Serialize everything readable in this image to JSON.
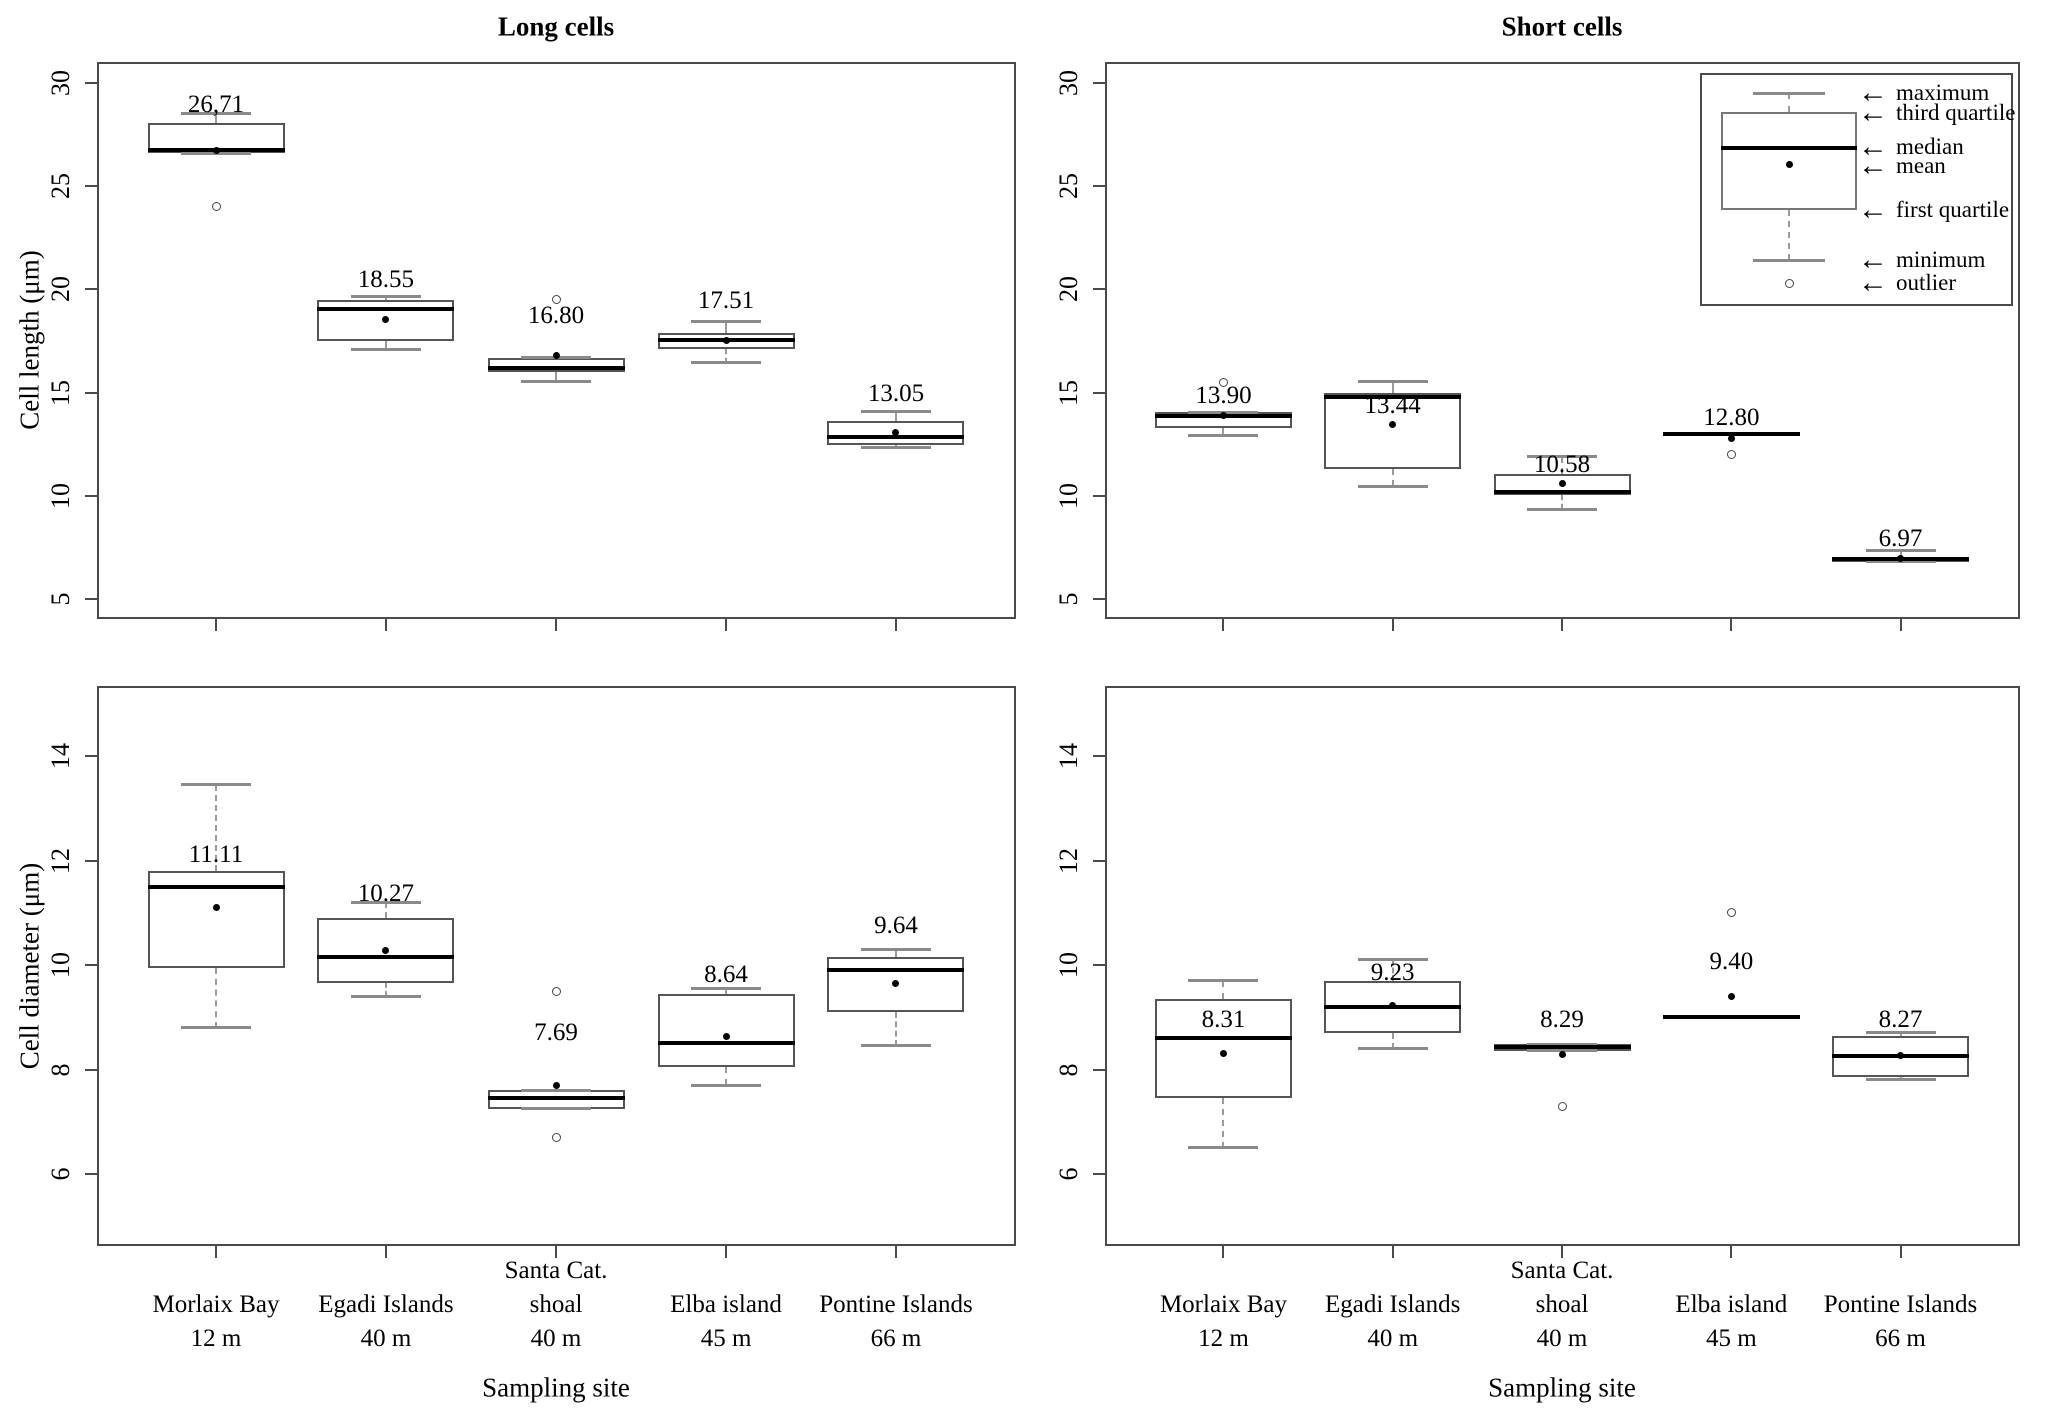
{
  "figure_titles": {
    "left": "Long cells",
    "right": "Short cells"
  },
  "axis_labels": {
    "x": "Sampling site",
    "y_top": "Cell length (μm)",
    "y_bottom": "Cell diameter (μm)"
  },
  "sites": [
    {
      "lines": [
        "Morlaix Bay",
        "12 m"
      ]
    },
    {
      "lines": [
        "Egadi Islands",
        "40 m"
      ]
    },
    {
      "lines": [
        "Santa Cat.",
        "shoal",
        "40 m"
      ]
    },
    {
      "lines": [
        "Elba island",
        "45 m"
      ]
    },
    {
      "lines": [
        "Pontine Islands",
        "66 m"
      ]
    }
  ],
  "legend": {
    "entries": [
      "maximum",
      "third quartile",
      "median",
      "mean",
      "first quartile",
      "minimum",
      "outlier"
    ],
    "arrow": "←"
  },
  "chart_data": [
    {
      "id": "long-cells-length",
      "panel": "top-left",
      "type": "boxplot",
      "title": "Long cells",
      "ylabel": "Cell length (μm)",
      "xlabel": "Sampling site",
      "ylim": [
        4,
        31
      ],
      "yticks": [
        5,
        10,
        15,
        20,
        25,
        30
      ],
      "categories": [
        "Morlaix Bay 12 m",
        "Egadi Islands 40 m",
        "Santa Cat. shoal 40 m",
        "Elba island 45 m",
        "Pontine Islands 66 m"
      ],
      "boxes": [
        {
          "site": "Morlaix Bay",
          "mean": 26.71,
          "mean_label": "26,71",
          "label_y": 28.95,
          "median": 26.75,
          "q1": 26.6,
          "q3": 28.05,
          "whisker_low": 26.6,
          "whisker_high": 28.5,
          "outliers": [
            24.0
          ]
        },
        {
          "site": "Egadi Islands",
          "mean": 18.55,
          "mean_label": "18.55",
          "label_y": 20.45,
          "median": 19.05,
          "q1": 17.5,
          "q3": 19.5,
          "whisker_low": 17.1,
          "whisker_high": 19.65,
          "outliers": []
        },
        {
          "site": "Santa Cat. shoal",
          "mean": 16.8,
          "mean_label": "16.80",
          "label_y": 18.7,
          "median": 16.2,
          "q1": 16.0,
          "q3": 16.7,
          "whisker_low": 15.55,
          "whisker_high": 16.7,
          "outliers": [
            19.5
          ]
        },
        {
          "site": "Elba island",
          "mean": 17.51,
          "mean_label": "17.51",
          "label_y": 19.45,
          "median": 17.55,
          "q1": 17.1,
          "q3": 17.9,
          "whisker_low": 16.45,
          "whisker_high": 18.45,
          "outliers": []
        },
        {
          "site": "Pontine Islands",
          "mean": 13.05,
          "mean_label": "13.05",
          "label_y": 14.95,
          "median": 12.85,
          "q1": 12.45,
          "q3": 13.6,
          "whisker_low": 12.35,
          "whisker_high": 14.1,
          "outliers": []
        }
      ]
    },
    {
      "id": "short-cells-length",
      "panel": "top-right",
      "type": "boxplot",
      "title": "Short cells",
      "ylabel": "Cell length (μm)",
      "xlabel": "Sampling site",
      "ylim": [
        4,
        31
      ],
      "yticks": [
        5,
        10,
        15,
        20,
        25,
        30
      ],
      "categories": [
        "Morlaix Bay 12 m",
        "Egadi Islands 40 m",
        "Santa Cat. shoal 40 m",
        "Elba island 45 m",
        "Pontine Islands 66 m"
      ],
      "boxes": [
        {
          "site": "Morlaix Bay",
          "mean": 13.9,
          "mean_label": "13.90",
          "label_y": 14.85,
          "median": 13.85,
          "q1": 13.3,
          "q3": 14.05,
          "whisker_low": 12.9,
          "whisker_high": 14.05,
          "outliers": [
            15.5
          ]
        },
        {
          "site": "Egadi Islands",
          "mean": 13.44,
          "mean_label": "13.44",
          "label_y": 14.35,
          "median": 14.8,
          "q1": 11.3,
          "q3": 15.0,
          "whisker_low": 10.45,
          "whisker_high": 15.55,
          "outliers": []
        },
        {
          "site": "Santa Cat. shoal",
          "mean": 10.58,
          "mean_label": "10.58",
          "label_y": 11.5,
          "median": 10.2,
          "q1": 10.05,
          "q3": 11.05,
          "whisker_low": 9.35,
          "whisker_high": 11.9,
          "outliers": []
        },
        {
          "site": "Elba island",
          "mean": 12.8,
          "mean_label": "12.80",
          "label_y": 13.75,
          "median": 13.0,
          "q1": 13.0,
          "q3": 13.0,
          "whisker_low": 13.0,
          "whisker_high": 13.0,
          "outliers": [
            12.0
          ]
        },
        {
          "site": "Pontine Islands",
          "mean": 6.97,
          "mean_label": "6.97",
          "label_y": 7.9,
          "median": 6.95,
          "q1": 6.8,
          "q3": 7.05,
          "whisker_low": 6.8,
          "whisker_high": 7.35,
          "outliers": []
        }
      ]
    },
    {
      "id": "long-cells-diameter",
      "panel": "bottom-left",
      "type": "boxplot",
      "title": "Long cells",
      "ylabel": "Cell diameter (μm)",
      "xlabel": "Sampling site",
      "ylim": [
        4.6,
        15.3
      ],
      "yticks": [
        6,
        8,
        10,
        12,
        14
      ],
      "categories": [
        "Morlaix Bay 12 m",
        "Egadi Islands 40 m",
        "Santa Cat. shoal 40 m",
        "Elba island 45 m",
        "Pontine Islands 66 m"
      ],
      "boxes": [
        {
          "site": "Morlaix Bay",
          "mean": 11.11,
          "mean_label": "11.11",
          "label_y": 12.1,
          "median": 11.5,
          "q1": 9.95,
          "q3": 11.8,
          "whisker_low": 8.8,
          "whisker_high": 13.45,
          "outliers": []
        },
        {
          "site": "Egadi Islands",
          "mean": 10.27,
          "mean_label": "10.27",
          "label_y": 11.35,
          "median": 10.15,
          "q1": 9.65,
          "q3": 10.9,
          "whisker_low": 9.4,
          "whisker_high": 11.2,
          "outliers": []
        },
        {
          "site": "Santa Cat. shoal",
          "mean": 7.69,
          "mean_label": "7.69",
          "label_y": 8.7,
          "median": 7.45,
          "q1": 7.25,
          "q3": 7.6,
          "whisker_low": 7.25,
          "whisker_high": 7.6,
          "outliers": [
            9.5,
            6.7
          ]
        },
        {
          "site": "Elba island",
          "mean": 8.64,
          "mean_label": "8.64",
          "label_y": 9.8,
          "median": 8.5,
          "q1": 8.05,
          "q3": 9.45,
          "whisker_low": 7.7,
          "whisker_high": 9.55,
          "outliers": []
        },
        {
          "site": "Pontine Islands",
          "mean": 9.64,
          "mean_label": "9.64",
          "label_y": 10.75,
          "median": 9.9,
          "q1": 9.1,
          "q3": 10.15,
          "whisker_low": 8.45,
          "whisker_high": 10.3,
          "outliers": []
        }
      ]
    },
    {
      "id": "short-cells-diameter",
      "panel": "bottom-right",
      "type": "boxplot",
      "title": "Short cells",
      "ylabel": "Cell diameter (μm)",
      "xlabel": "Sampling site",
      "ylim": [
        4.6,
        15.3
      ],
      "yticks": [
        6,
        8,
        10,
        12,
        14
      ],
      "categories": [
        "Morlaix Bay 12 m",
        "Egadi Islands 40 m",
        "Santa Cat. shoal 40 m",
        "Elba island 45 m",
        "Pontine Islands 66 m"
      ],
      "boxes": [
        {
          "site": "Morlaix Bay",
          "mean": 8.31,
          "mean_label": "8.31",
          "label_y": 8.95,
          "median": 8.6,
          "q1": 7.45,
          "q3": 9.35,
          "whisker_low": 6.5,
          "whisker_high": 9.7,
          "outliers": []
        },
        {
          "site": "Egadi Islands",
          "mean": 9.23,
          "mean_label": "9.23",
          "label_y": 9.85,
          "median": 9.2,
          "q1": 8.7,
          "q3": 9.7,
          "whisker_low": 8.4,
          "whisker_high": 10.1,
          "outliers": []
        },
        {
          "site": "Santa Cat. shoal",
          "mean": 8.29,
          "mean_label": "8.29",
          "label_y": 8.95,
          "median": 8.44,
          "q1": 8.36,
          "q3": 8.48,
          "whisker_low": 8.36,
          "whisker_high": 8.48,
          "outliers": [
            7.3
          ]
        },
        {
          "site": "Elba island",
          "mean": 9.4,
          "mean_label": "9.40",
          "label_y": 10.05,
          "median": 9.0,
          "q1": 9.0,
          "q3": 9.0,
          "whisker_low": 9.0,
          "whisker_high": 9.0,
          "outliers": [
            11.0
          ]
        },
        {
          "site": "Pontine Islands",
          "mean": 8.27,
          "mean_label": "8.27",
          "label_y": 8.95,
          "median": 8.25,
          "q1": 7.85,
          "q3": 8.65,
          "whisker_low": 7.8,
          "whisker_high": 8.7,
          "outliers": []
        }
      ]
    }
  ]
}
